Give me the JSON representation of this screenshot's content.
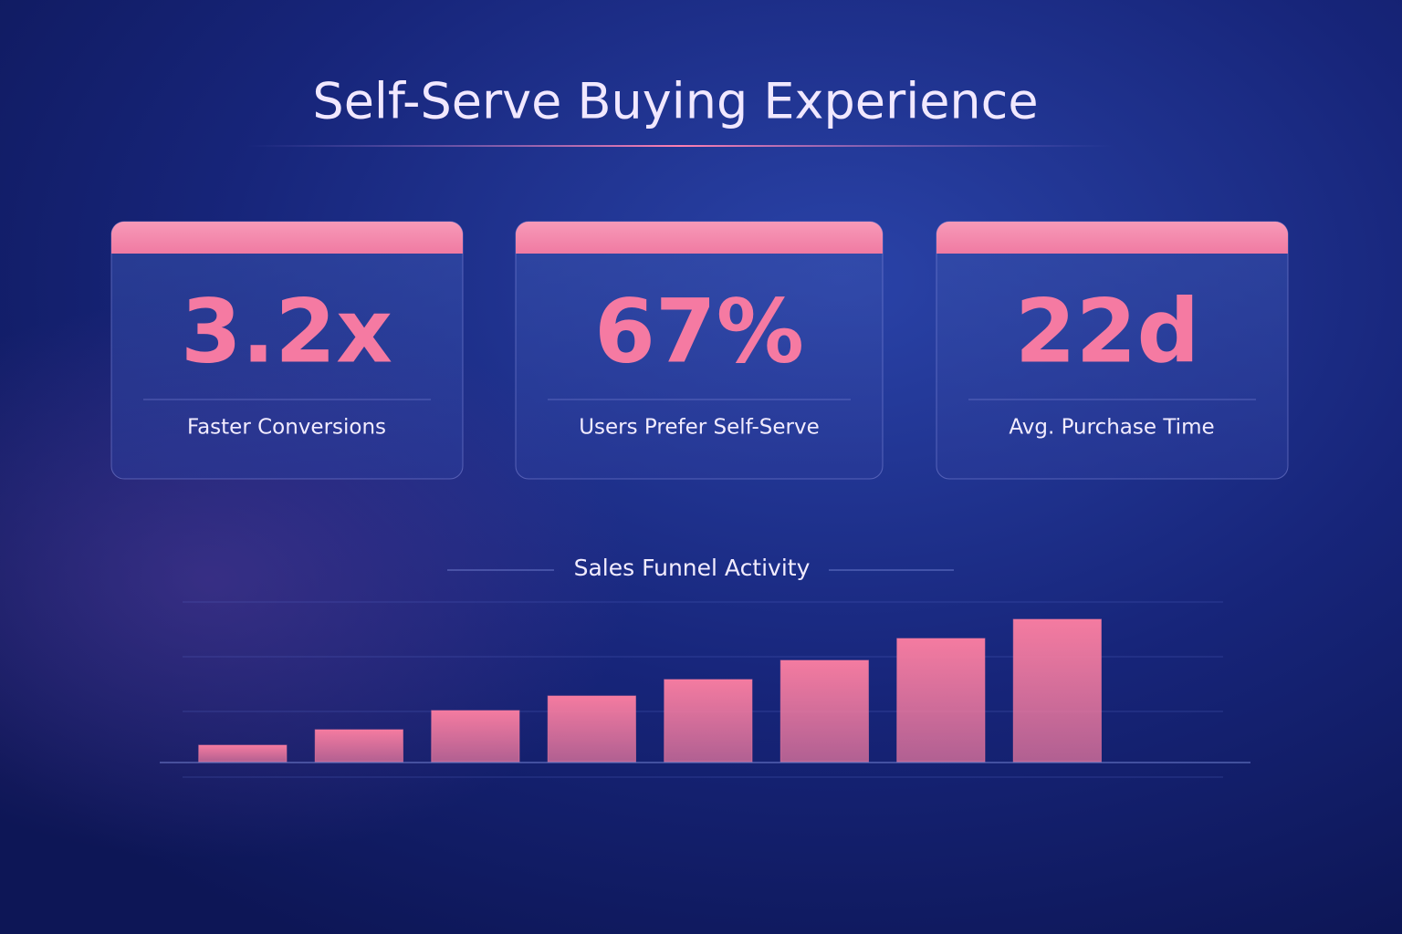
{
  "title": "Self-Serve Buying Experience",
  "cards": [
    {
      "value": "3.2x",
      "label": "Faster Conversions"
    },
    {
      "value": "67%",
      "label": "Users Prefer Self-Serve"
    },
    {
      "value": "22d",
      "label": "Avg. Purchase Time"
    }
  ],
  "chart_data": {
    "type": "bar",
    "title": "Sales Funnel Activity",
    "values": [
      18,
      35,
      56,
      72,
      90,
      111,
      135,
      156
    ],
    "color": "#f47ba0"
  }
}
